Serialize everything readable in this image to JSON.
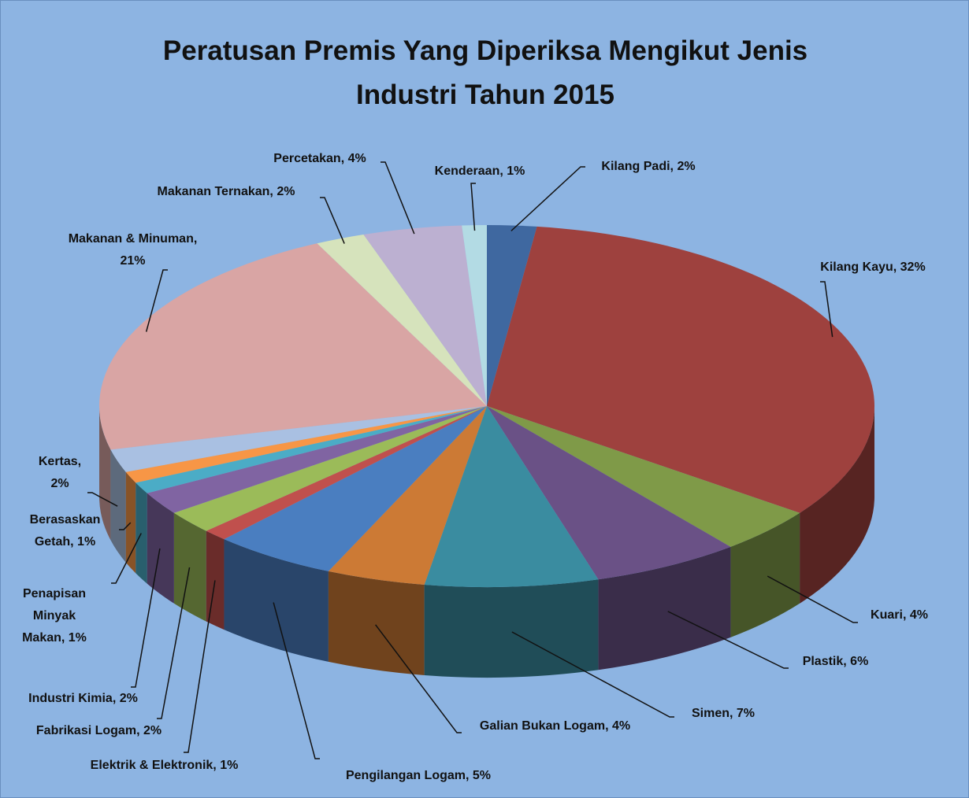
{
  "chart_data": {
    "type": "pie3d",
    "title": "Peratusan Premis Yang Diperiksa Mengikut Jenis Industri Tahun 2015",
    "categories": [
      "Kilang Padi",
      "Kilang Kayu",
      "Kuari",
      "Plastik",
      "Simen",
      "Galian Bukan Logam",
      "Pengilangan Logam",
      "Elektrik & Elektronik",
      "Fabrikasi Logam",
      "Industri Kimia",
      "Penapisan Minyak Makan",
      "Berasaskan Getah",
      "Kertas",
      "Makanan & Minuman",
      "Makanan Ternakan",
      "Percetakan",
      "Kenderaan"
    ],
    "values": [
      2,
      32,
      4,
      6,
      7,
      4,
      5,
      1,
      2,
      2,
      1,
      1,
      2,
      21,
      2,
      4,
      1
    ],
    "value_labels": [
      "2%",
      "32%",
      "4%",
      "6%",
      "7%",
      "4%",
      "5%",
      "1%",
      "2%",
      "2%",
      "1%",
      "1%",
      "2%",
      "21%",
      "2%",
      "4%",
      "1%"
    ],
    "label_separator": ", ",
    "colors": [
      "#3f68a0",
      "#9e413e",
      "#7f9a48",
      "#6a5186",
      "#3a8ca0",
      "#cc7a35",
      "#4a7ec0",
      "#c0504d",
      "#9bbb59",
      "#8064a2",
      "#4bacc6",
      "#f79646",
      "#a9c0e2",
      "#d9a5a4",
      "#d6e3bc",
      "#bcb0d1",
      "#b3dbe4"
    ]
  }
}
